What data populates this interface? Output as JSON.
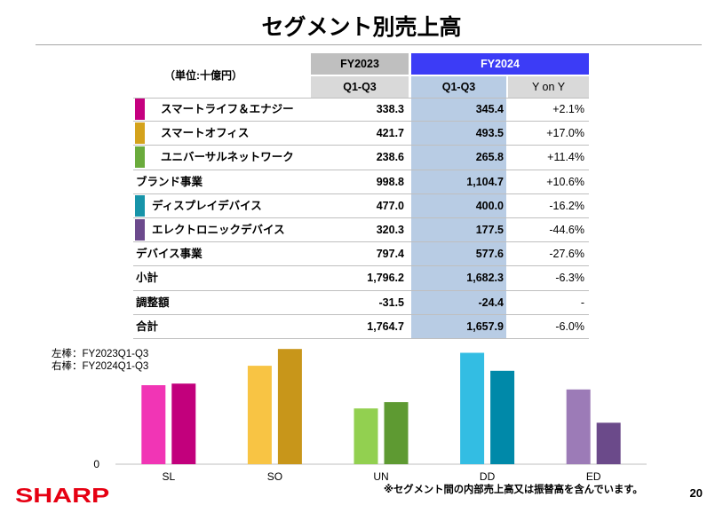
{
  "title": "セグメント別売上高",
  "colors": {
    "title_rule": "#a6a6a6",
    "fy2023_header": "#bfbfbf",
    "fy2024_header": "#3c3cf6",
    "fy2024_column": "#b8cce4",
    "subheader": "#d9d9d9",
    "logo": "#e60012"
  },
  "table": {
    "unit_label": "（単位:十億円）",
    "header_fy2023": "FY2023",
    "header_fy2024": "FY2024",
    "sub_fy2023": "Q1-Q3",
    "sub_fy2024": "Q1-Q3",
    "sub_yoy": "Y on Y",
    "rows": [
      {
        "label": "スマートライフ＆エナジー",
        "fy2023": "338.3",
        "fy2024": "345.4",
        "yoy": "+2.1%",
        "swatch": "#c5007f"
      },
      {
        "label": "スマートオフィス",
        "fy2023": "421.7",
        "fy2024": "493.5",
        "yoy": "+17.0%",
        "swatch": "#d4a21c"
      },
      {
        "label": "ユニバーサルネットワーク",
        "fy2023": "238.6",
        "fy2024": "265.8",
        "yoy": "+11.4%",
        "swatch": "#6aab3c"
      },
      {
        "label": "ブランド事業",
        "fy2023": "998.8",
        "fy2024": "1,104.7",
        "yoy": "+10.6%"
      },
      {
        "label": "ディスプレイデバイス",
        "fy2023": "477.0",
        "fy2024": "400.0",
        "yoy": "-16.2%",
        "swatch": "#1794a9"
      },
      {
        "label": "エレクトロニックデバイス",
        "fy2023": "320.3",
        "fy2024": "177.5",
        "yoy": "-44.6%",
        "swatch": "#6c4a8d"
      },
      {
        "label": "デバイス事業",
        "fy2023": "797.4",
        "fy2024": "577.6",
        "yoy": "-27.6%"
      },
      {
        "label": "小計",
        "fy2023": "1,796.2",
        "fy2024": "1,682.3",
        "yoy": "-6.3%"
      },
      {
        "label": "調整額",
        "fy2023": "-31.5",
        "fy2024": "-24.4",
        "yoy": "-"
      },
      {
        "label": "合計",
        "fy2023": "1,764.7",
        "fy2024": "1,657.9",
        "yoy": "-6.0%"
      }
    ]
  },
  "chart_data": {
    "type": "bar",
    "categories": [
      "SL",
      "SO",
      "UN",
      "DD",
      "ED"
    ],
    "series": [
      {
        "name": "FY2023Q1-Q3",
        "values": [
          338.3,
          421.7,
          238.6,
          477.0,
          320.3
        ],
        "colors": [
          "#f135b5",
          "#f8c444",
          "#92d050",
          "#33bde3",
          "#9c7bb7"
        ]
      },
      {
        "name": "FY2024Q1-Q3",
        "values": [
          345.4,
          493.5,
          265.8,
          400.0,
          177.5
        ],
        "colors": [
          "#c2007c",
          "#c8961a",
          "#5e9a32",
          "#0089a9",
          "#6b4a8a"
        ]
      }
    ],
    "legend_labels": [
      "左棒：",
      "右棒："
    ],
    "legend_position": "top-left",
    "y_tick_labels": [
      "0"
    ],
    "ylim": [
      0,
      500
    ],
    "grid": false
  },
  "footnote": "※セグメント間の内部売上高又は振替高を含んでいます。",
  "page_number": "20",
  "logo_text": "SHARP"
}
